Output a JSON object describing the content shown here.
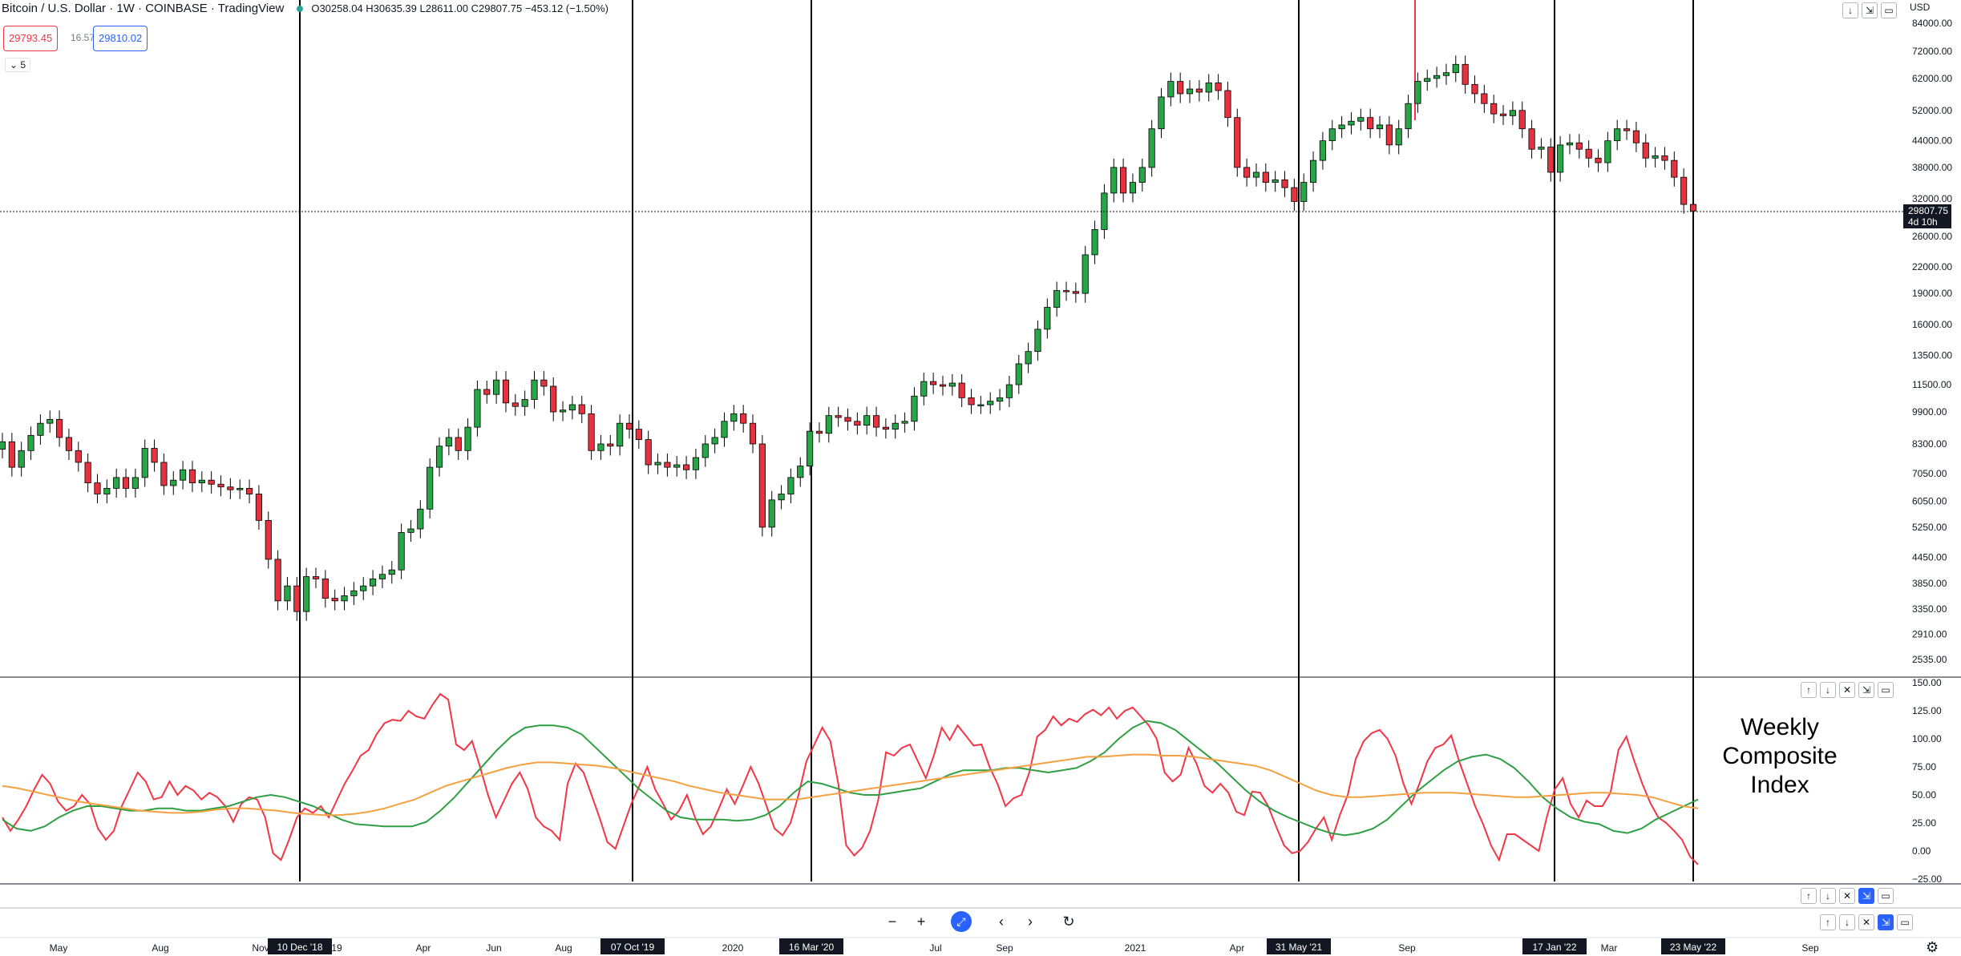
{
  "header": {
    "symbol": "Bitcoin / U.S. Dollar · 1W · COINBASE · TradingView",
    "ohlc": "O30258.04 H30635.39 L28611.00 C29807.75 −453.12 (−1.50%)",
    "bid": "29793.45",
    "spread": "16.57",
    "ask": "29810.02",
    "collapse_label": "5"
  },
  "currency": "USD",
  "oscillator_label": "Weekly Composite Index",
  "colors": {
    "up": "#26a69a",
    "up_fill": "#26a646",
    "down": "#e5323e",
    "osc_red": "#f23645",
    "osc_green": "#2ea043",
    "osc_orange": "#f5a041"
  },
  "icons": [
    "arrow-down-icon",
    "collapse-icon",
    "maximize-icon",
    "arrow-up-icon",
    "close-icon",
    "zoom-out-icon",
    "zoom-in-icon",
    "reset-scale-icon",
    "scroll-left-icon",
    "scroll-right-icon",
    "reload-icon",
    "gear-icon"
  ],
  "chart_data": [
    {
      "type": "candlestick",
      "title": "Bitcoin / U.S. Dollar · 1W · COINBASE · TradingView",
      "scale": "log",
      "price_ticks": [
        "84000.00",
        "72000.00",
        "62000.00",
        "52000.00",
        "44000.00",
        "38000.00",
        "32000.00",
        "26000.00",
        "22000.00",
        "19000.00",
        "16000.00",
        "13500.00",
        "11500.00",
        "9900.00",
        "8300.00",
        "7050.00",
        "6050.00",
        "5250.00",
        "4450.00",
        "3850.00",
        "3350.00",
        "2910.00",
        "2535.00"
      ],
      "last_price": "29807.75",
      "last_price_countdown": "4d 10h",
      "x_labels": [
        "May",
        "Aug",
        "Nov",
        "19",
        "Apr",
        "Jun",
        "Aug",
        "2020",
        "Jul",
        "Sep",
        "2021",
        "Apr",
        "Sep",
        "Mar",
        "Sep"
      ],
      "vertical_markers": [
        "10 Dec '18",
        "07 Oct '19",
        "16 Mar '20",
        "31 May '21",
        "17 Jan '22",
        "23 May '22"
      ],
      "closes": [
        8400,
        7300,
        8000,
        8700,
        9300,
        9500,
        8600,
        8000,
        7500,
        6700,
        6300,
        6500,
        6900,
        6500,
        6900,
        8100,
        7500,
        6600,
        6800,
        7200,
        6700,
        6800,
        6650,
        6550,
        6450,
        6500,
        6300,
        5450,
        4400,
        3500,
        3800,
        3300,
        4000,
        3950,
        3550,
        3500,
        3600,
        3700,
        3800,
        3950,
        4050,
        4150,
        5100,
        5200,
        5800,
        7300,
        8200,
        8600,
        8000,
        9100,
        11200,
        10900,
        11800,
        10400,
        10200,
        10600,
        11800,
        11400,
        9900,
        10000,
        10300,
        9800,
        8000,
        8300,
        8200,
        9300,
        9000,
        8500,
        7400,
        7500,
        7300,
        7400,
        7200,
        7700,
        8300,
        8600,
        9400,
        9800,
        9300,
        8300,
        5250,
        6100,
        6300,
        6900,
        7350,
        8900,
        8800,
        9700,
        9600,
        9400,
        9200,
        9700,
        9100,
        9000,
        9300,
        9400,
        10800,
        11700,
        11500,
        11400,
        11600,
        10700,
        10300,
        10300,
        10500,
        10700,
        11500,
        12900,
        13800,
        15600,
        17600,
        19300,
        19200,
        19000,
        23500,
        27000,
        33000,
        38000,
        33000,
        35000,
        38000,
        47000,
        56000,
        61000,
        57000,
        58500,
        57500,
        60500,
        58000,
        50000,
        38000,
        36000,
        37000,
        35000,
        35500,
        34000,
        31500,
        35000,
        39500,
        44000,
        47000,
        48000,
        49000,
        50000,
        47000,
        48000,
        43000,
        47000,
        54000,
        61000,
        62000,
        63000,
        64000,
        67000,
        60000,
        57000,
        54000,
        51000,
        50500,
        52000,
        47000,
        42000,
        42500,
        37000,
        43000,
        43500,
        42000,
        40000,
        39000,
        44000,
        47000,
        46500,
        43500,
        40000,
        40500,
        39500,
        36000,
        31000,
        29900
      ],
      "oscillator": {
        "y_ticks": [
          "150.00",
          "125.00",
          "100.00",
          "75.00",
          "50.00",
          "25.00",
          "0.00",
          "−25.00"
        ],
        "series": [
          {
            "name": "",
            "color": "red",
            "values": [
              30,
              18,
              28,
              40,
              55,
              68,
              60,
              44,
              36,
              40,
              50,
              42,
              20,
              10,
              18,
              40,
              55,
              70,
              62,
              46,
              48,
              62,
              50,
              58,
              54,
              46,
              52,
              48,
              40,
              26,
              42,
              48,
              46,
              30,
              -2,
              -8,
              10,
              30,
              38,
              34,
              40,
              30,
              45,
              60,
              72,
              85,
              90,
              104,
              114,
              117,
              116,
              125,
              120,
              118,
              130,
              140,
              135,
              95,
              90,
              98,
              75,
              50,
              30,
              45,
              60,
              70,
              55,
              30,
              22,
              18,
              10,
              60,
              78,
              70,
              50,
              30,
              8,
              2,
              22,
              42,
              58,
              75,
              55,
              42,
              28,
              36,
              50,
              30,
              15,
              22,
              38,
              55,
              42,
              58,
              75,
              60,
              40,
              20,
              14,
              25,
              50,
              80,
              95,
              110,
              98,
              60,
              5,
              -4,
              3,
              18,
              45,
              88,
              85,
              92,
              95,
              80,
              65,
              85,
              110,
              99,
              112,
              103,
              94,
              95,
              75,
              60,
              40,
              47,
              50,
              70,
              102,
              108,
              120,
              112,
              118,
              115,
              122,
              126,
              121,
              128,
              118,
              125,
              128,
              120,
              112,
              100,
              70,
              62,
              68,
              92,
              78,
              58,
              52,
              60,
              52,
              35,
              32,
              53,
              52,
              40,
              22,
              5,
              -2,
              0,
              8,
              20,
              30,
              10,
              32,
              50,
              82,
              98,
              105,
              108,
              100,
              85,
              60,
              42,
              60,
              80,
              92,
              95,
              103,
              80,
              60,
              40,
              24,
              5,
              -8,
              15,
              15,
              10,
              5,
              0,
              30,
              55,
              65,
              42,
              30,
              45,
              40,
              40,
              52,
              90,
              102,
              80,
              60,
              43,
              30,
              25,
              18,
              10,
              -5,
              -12
            ],
            "step": 1
          },
          {
            "name": "",
            "color": "green",
            "values": [
              28,
              20,
              18,
              22,
              30,
              36,
              40,
              40,
              38,
              36,
              36,
              38,
              38,
              36,
              36,
              38,
              40,
              44,
              48,
              50,
              48,
              44,
              40,
              34,
              28,
              24,
              23,
              22,
              22,
              22,
              26,
              36,
              48,
              62,
              76,
              90,
              102,
              110,
              112,
              112,
              110,
              104,
              92,
              80,
              68,
              56,
              46,
              36,
              30,
              28,
              28,
              28,
              27,
              28,
              32,
              40,
              52,
              62,
              60,
              56,
              52,
              50,
              50,
              52,
              54,
              56,
              62,
              68,
              72,
              72,
              72,
              74,
              74,
              72,
              70,
              72,
              74,
              80,
              88,
              100,
              110,
              116,
              114,
              108,
              98,
              88,
              78,
              66,
              54,
              44,
              36,
              30,
              25,
              20,
              16,
              14,
              16,
              20,
              28,
              40,
              52,
              62,
              72,
              80,
              84,
              86,
              82,
              74,
              62,
              48,
              38,
              30,
              26,
              24,
              18,
              16,
              20,
              28,
              34,
              40,
              46
            ],
            "step": 1.7
          },
          {
            "name": "",
            "color": "orange",
            "values": [
              58,
              56,
              53,
              50,
              47,
              44,
              42,
              40,
              38,
              36,
              35,
              34,
              34,
              35,
              37,
              38,
              38,
              37,
              36,
              34,
              33,
              32,
              32,
              33,
              35,
              38,
              42,
              46,
              52,
              58,
              62,
              66,
              70,
              74,
              77,
              79,
              79,
              78,
              77,
              76,
              74,
              71,
              68,
              65,
              62,
              58,
              55,
              52,
              50,
              48,
              46,
              46,
              46,
              48,
              50,
              52,
              54,
              56,
              58,
              60,
              62,
              64,
              66,
              68,
              70,
              72,
              74,
              76,
              78,
              80,
              82,
              84,
              84,
              85,
              86,
              86,
              85,
              85,
              84,
              82,
              80,
              78,
              76,
              72,
              66,
              60,
              54,
              50,
              48,
              48,
              49,
              50,
              51,
              52,
              52,
              52,
              51,
              50,
              49,
              48,
              48,
              49,
              50,
              51,
              52,
              52,
              51,
              50,
              48,
              44,
              40,
              38
            ],
            "step": 2.2
          }
        ]
      }
    }
  ]
}
